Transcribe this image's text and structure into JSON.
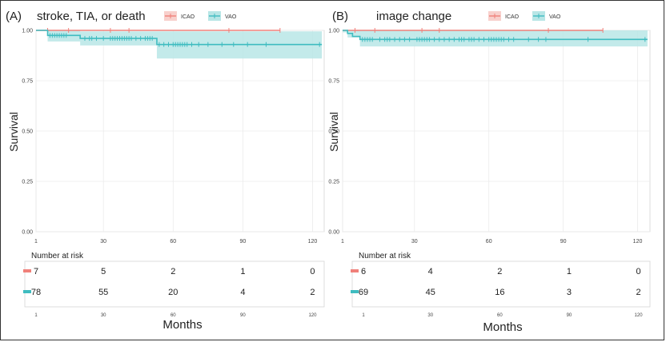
{
  "colors": {
    "icao": "#f0807a",
    "vao": "#3fbcc0",
    "vao_band": "#b8e6e6",
    "icao_band": "#f8d0cc",
    "grid": "#ebebeb",
    "border": "#333333"
  },
  "chart_data": [
    {
      "type": "line",
      "panel_label": "(A)",
      "title": "stroke, TIA, or death",
      "ylabel": "Survival",
      "xlabel": "Months",
      "x_ticks": [
        "1",
        "30",
        "60",
        "90",
        "120"
      ],
      "y_ticks": [
        "0.00",
        "0.25",
        "0.50",
        "0.75",
        "1.00"
      ],
      "xlim": [
        1,
        125
      ],
      "ylim": [
        0,
        1
      ],
      "legend": {
        "position": "top",
        "entries": [
          "ICAO",
          "VAO"
        ]
      },
      "series": [
        {
          "name": "ICAO",
          "color": "#f0807a",
          "steps": [
            [
              1,
              1.0
            ],
            [
              106,
              1.0
            ]
          ],
          "censors": [
            6,
            15,
            33,
            41,
            84,
            106
          ],
          "ci": [
            [
              6,
              1.0,
              1.0
            ],
            [
              106,
              1.0,
              1.0
            ]
          ]
        },
        {
          "name": "VAO",
          "color": "#3fbcc0",
          "steps": [
            [
              1,
              1.0
            ],
            [
              6,
              0.975
            ],
            [
              20,
              0.96
            ],
            [
              53,
              0.93
            ],
            [
              124,
              0.93
            ]
          ],
          "censors": [
            7,
            8,
            9,
            10,
            11,
            12,
            13,
            14,
            22,
            24,
            25,
            27,
            30,
            33,
            34,
            35,
            36,
            37,
            38,
            39,
            40,
            41,
            42,
            44,
            46,
            48,
            49,
            50,
            51,
            54,
            56,
            58,
            60,
            61,
            62,
            63,
            64,
            65,
            66,
            68,
            71,
            75,
            81,
            86,
            92,
            100,
            123
          ],
          "ci": [
            [
              6,
              1.0,
              0.945
            ],
            [
              20,
              0.995,
              0.925
            ],
            [
              53,
              0.995,
              0.86
            ],
            [
              124,
              0.995,
              0.86
            ]
          ]
        }
      ],
      "risk_table": {
        "title": "Number at risk",
        "x_ticks": [
          "1",
          "30",
          "60",
          "90",
          "120"
        ],
        "rows": [
          {
            "name": "ICAO",
            "values": [
              "7",
              "5",
              "2",
              "1",
              "0"
            ]
          },
          {
            "name": "VAO",
            "values": [
              "78",
              "55",
              "20",
              "4",
              "2"
            ]
          }
        ]
      }
    },
    {
      "type": "line",
      "panel_label": "(B)",
      "title": "image change",
      "ylabel": "Survival",
      "xlabel": "Months",
      "x_ticks": [
        "1",
        "30",
        "60",
        "90",
        "120"
      ],
      "y_ticks": [
        "0.00",
        "0.25",
        "0.50",
        "0.75",
        "1.00"
      ],
      "xlim": [
        1,
        125
      ],
      "ylim": [
        0,
        1
      ],
      "legend": {
        "position": "top",
        "entries": [
          "ICAO",
          "VAO"
        ]
      },
      "series": [
        {
          "name": "ICAO",
          "color": "#f0807a",
          "steps": [
            [
              1,
              1.0
            ],
            [
              106,
              1.0
            ]
          ],
          "censors": [
            6,
            14,
            33,
            40,
            84,
            106
          ],
          "ci": [
            [
              1,
              1.0,
              1.0
            ],
            [
              106,
              1.0,
              1.0
            ]
          ]
        },
        {
          "name": "VAO",
          "color": "#3fbcc0",
          "steps": [
            [
              1,
              1.0
            ],
            [
              3,
              0.985
            ],
            [
              5,
              0.97
            ],
            [
              8,
              0.955
            ],
            [
              124,
              0.955
            ]
          ],
          "censors": [
            9,
            10,
            11,
            12,
            13,
            16,
            18,
            19,
            20,
            22,
            24,
            26,
            28,
            31,
            32,
            33,
            34,
            35,
            36,
            38,
            40,
            42,
            44,
            46,
            48,
            49,
            50,
            52,
            53,
            54,
            56,
            58,
            60,
            61,
            62,
            63,
            64,
            65,
            66,
            68,
            70,
            76,
            80,
            83,
            100,
            123
          ],
          "ci": [
            [
              1,
              1.0,
              0.99
            ],
            [
              3,
              1.0,
              0.965
            ],
            [
              8,
              1.0,
              0.92
            ],
            [
              124,
              1.0,
              0.92
            ]
          ]
        }
      ],
      "risk_table": {
        "title": "Number at risk",
        "x_ticks": [
          "1",
          "30",
          "60",
          "90",
          "120"
        ],
        "rows": [
          {
            "name": "ICAO",
            "values": [
              "6",
              "4",
              "2",
              "1",
              "0"
            ]
          },
          {
            "name": "VAO",
            "values": [
              "69",
              "45",
              "16",
              "3",
              "2"
            ]
          }
        ]
      }
    }
  ]
}
